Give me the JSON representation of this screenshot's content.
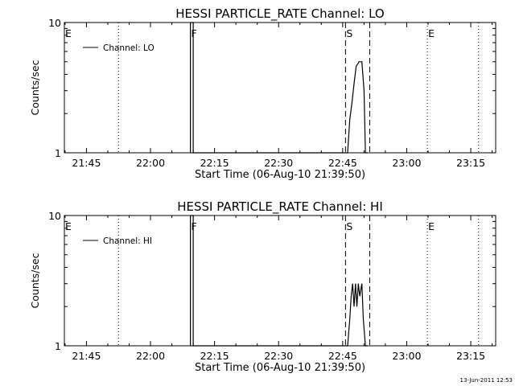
{
  "footer": {
    "timestamp": "13-Jun-2011 12:53"
  },
  "chart_data": [
    {
      "type": "line",
      "title": "HESSI PARTICLE_RATE Channel: LO",
      "xlabel": "Start Time (06-Aug-10 21:39:50)",
      "ylabel": "Counts/sec",
      "y_scale": "log",
      "ylim": [
        1,
        10
      ],
      "y_ticks": [
        "1",
        "10"
      ],
      "xlim": [
        "21:39:50",
        "23:20:50"
      ],
      "x_ticks": [
        "21:45",
        "22:00",
        "22:15",
        "22:30",
        "22:45",
        "23:00",
        "23:15"
      ],
      "grid": false,
      "legend": {
        "position": "top-left",
        "entries": [
          "Channel: LO"
        ]
      },
      "series": [
        {
          "name": "Channel: LO",
          "points": [
            [
              "22:09:20",
              1
            ],
            [
              "22:09:20",
              10
            ],
            [
              "22:10:00",
              10
            ],
            [
              "22:10:00",
              1
            ],
            [
              "22:46:10",
              1
            ],
            [
              "22:46:40",
              1.8
            ],
            [
              "22:47:10",
              2.4
            ],
            [
              "22:47:40",
              3.4
            ],
            [
              "22:48:10",
              4.6
            ],
            [
              "22:48:50",
              5.0
            ],
            [
              "22:49:30",
              5.0
            ],
            [
              "22:50:00",
              3.0
            ],
            [
              "22:50:20",
              1
            ],
            [
              "22:50:50",
              1
            ]
          ]
        }
      ],
      "markers": [
        {
          "label": "E",
          "time": "21:39:50",
          "style": "none"
        },
        {
          "label": "",
          "time": "21:52:30",
          "style": "dotted"
        },
        {
          "label": "F",
          "time": "22:09:20",
          "style": "solid"
        },
        {
          "label": "S",
          "time": "22:45:40",
          "style": "dashed"
        },
        {
          "label": "",
          "time": "22:51:20",
          "style": "dashed"
        },
        {
          "label": "E",
          "time": "23:04:50",
          "style": "dotted"
        },
        {
          "label": "",
          "time": "23:16:50",
          "style": "dotted"
        }
      ]
    },
    {
      "type": "line",
      "title": "HESSI PARTICLE_RATE Channel: HI",
      "xlabel": "Start Time (06-Aug-10 21:39:50)",
      "ylabel": "Counts/sec",
      "y_scale": "log",
      "ylim": [
        1,
        10
      ],
      "y_ticks": [
        "1",
        "10"
      ],
      "xlim": [
        "21:39:50",
        "23:20:50"
      ],
      "x_ticks": [
        "21:45",
        "22:00",
        "22:15",
        "22:30",
        "22:45",
        "23:00",
        "23:15"
      ],
      "grid": false,
      "legend": {
        "position": "top-left",
        "entries": [
          "Channel: HI"
        ]
      },
      "series": [
        {
          "name": "Channel: HI",
          "points": [
            [
              "22:09:20",
              1
            ],
            [
              "22:09:20",
              10
            ],
            [
              "22:10:00",
              10
            ],
            [
              "22:10:00",
              1
            ],
            [
              "22:46:10",
              1
            ],
            [
              "22:46:40",
              1.6
            ],
            [
              "22:47:00",
              2.4
            ],
            [
              "22:47:20",
              3.0
            ],
            [
              "22:47:40",
              2.0
            ],
            [
              "22:48:00",
              3.0
            ],
            [
              "22:48:20",
              2.0
            ],
            [
              "22:48:40",
              3.0
            ],
            [
              "22:49:00",
              2.4
            ],
            [
              "22:49:30",
              3.0
            ],
            [
              "22:49:50",
              1.6
            ],
            [
              "22:50:20",
              1
            ],
            [
              "22:50:50",
              1
            ]
          ]
        }
      ],
      "markers": [
        {
          "label": "E",
          "time": "21:39:50",
          "style": "none"
        },
        {
          "label": "",
          "time": "21:52:30",
          "style": "dotted"
        },
        {
          "label": "F",
          "time": "22:09:20",
          "style": "solid"
        },
        {
          "label": "S",
          "time": "22:45:40",
          "style": "dashed"
        },
        {
          "label": "",
          "time": "22:51:20",
          "style": "dashed"
        },
        {
          "label": "E",
          "time": "23:04:50",
          "style": "dotted"
        },
        {
          "label": "",
          "time": "23:16:50",
          "style": "dotted"
        }
      ]
    }
  ]
}
